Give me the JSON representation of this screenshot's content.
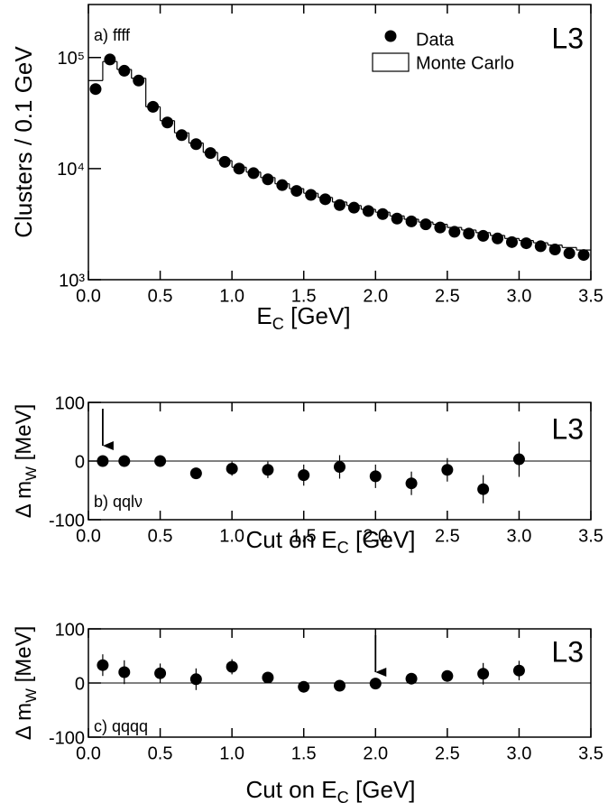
{
  "chart_data": [
    {
      "type": "scatter",
      "log_y": true,
      "annotation": "a) ffff",
      "logo": "L3",
      "legend": true,
      "xlabel": [
        "E",
        "C",
        " [GeV]"
      ],
      "ylabel": "Clusters / 0.1 GeV",
      "xlim": [
        0,
        3.5
      ],
      "ylim": [
        1000,
        300000
      ],
      "xticks": [
        {
          "value": 0,
          "label": "0.0"
        },
        0.5,
        {
          "value": 1,
          "label": "1.0"
        },
        1.5,
        {
          "value": 2,
          "label": "2.0"
        },
        2.5,
        {
          "value": 3,
          "label": "3.0"
        },
        3.5
      ],
      "yticks": [
        {
          "value": 1000,
          "label": "10³"
        },
        {
          "value": 10000,
          "label": "10⁴"
        },
        {
          "value": 100000,
          "label": "10⁵"
        }
      ],
      "series": [
        {
          "name": "Data",
          "color": "#000000",
          "x": [
            0.05,
            0.15,
            0.25,
            0.35,
            0.45,
            0.55,
            0.65,
            0.75,
            0.85,
            0.95,
            1.05,
            1.15,
            1.25,
            1.35,
            1.45,
            1.55,
            1.65,
            1.75,
            1.85,
            1.95,
            2.05,
            2.15,
            2.25,
            2.35,
            2.45,
            2.55,
            2.65,
            2.75,
            2.85,
            2.95,
            3.05,
            3.15,
            3.25,
            3.35,
            3.45
          ],
          "values": [
            52000,
            96000,
            76000,
            62000,
            36000,
            26000,
            20000,
            16600,
            13800,
            11500,
            10000,
            9100,
            8000,
            7100,
            6300,
            5800,
            5300,
            4700,
            4450,
            4150,
            3900,
            3550,
            3350,
            3150,
            2950,
            2700,
            2600,
            2480,
            2350,
            2180,
            2130,
            2000,
            1870,
            1730,
            1670
          ]
        },
        {
          "name": "Monte Carlo",
          "color": "#000000",
          "bins": [
            0,
            0.1,
            0.2,
            0.3,
            0.4,
            0.5,
            0.6,
            0.7,
            0.8,
            0.9,
            1.0,
            1.1,
            1.2,
            1.3,
            1.4,
            1.5,
            1.6,
            1.7,
            1.8,
            1.9,
            2.0,
            2.1,
            2.2,
            2.3,
            2.4,
            2.5,
            2.6,
            2.7,
            2.8,
            2.9,
            3.0,
            3.1,
            3.2,
            3.3,
            3.4,
            3.5
          ],
          "values": [
            62000,
            92000,
            78000,
            65000,
            36000,
            27000,
            21000,
            17000,
            14000,
            11800,
            10300,
            9300,
            8300,
            7300,
            6600,
            6000,
            5500,
            5000,
            4650,
            4300,
            4050,
            3750,
            3500,
            3300,
            3150,
            2950,
            2800,
            2650,
            2500,
            2350,
            2250,
            2150,
            2050,
            1950,
            1850
          ]
        }
      ]
    },
    {
      "type": "errorbar",
      "annotation": "b) qqlν",
      "logo": "L3",
      "hline": 0,
      "arrow_x": 0.1,
      "xlabel": [
        "Cut on E",
        "C",
        " [GeV]"
      ],
      "ylabel": [
        "Δ m",
        "W",
        " [MeV]"
      ],
      "xlim": [
        0,
        3.5
      ],
      "ylim": [
        -100,
        100
      ],
      "xticks": [
        {
          "value": 0,
          "label": "0.0"
        },
        0.5,
        {
          "value": 1,
          "label": "1.0"
        },
        1.5,
        {
          "value": 2,
          "label": "2.0"
        },
        2.5,
        {
          "value": 3,
          "label": "3.0"
        },
        3.5
      ],
      "yticks": [
        -100,
        0,
        100
      ],
      "series": [
        {
          "color": "#000000",
          "x": [
            0.1,
            0.25,
            0.5,
            0.75,
            1.0,
            1.25,
            1.5,
            1.75,
            2.0,
            2.25,
            2.5,
            2.75,
            3.0
          ],
          "values": [
            0,
            0,
            0,
            -21,
            -13,
            -15,
            -24,
            -10,
            -26,
            -38,
            -15,
            -48,
            3
          ],
          "errors": [
            2,
            2,
            2,
            8,
            12,
            14,
            18,
            20,
            20,
            20,
            20,
            24,
            30
          ]
        }
      ]
    },
    {
      "type": "errorbar",
      "annotation": "c) qqqq",
      "logo": "L3",
      "hline": 0,
      "arrow_x": 2.0,
      "xlabel": [
        "Cut on E",
        "C",
        " [GeV]"
      ],
      "ylabel": [
        "Δ m",
        "W",
        " [MeV]"
      ],
      "xlim": [
        0,
        3.5
      ],
      "ylim": [
        -100,
        100
      ],
      "xticks": [
        {
          "value": 0,
          "label": "0.0"
        },
        0.5,
        {
          "value": 1,
          "label": "1.0"
        },
        1.5,
        {
          "value": 2,
          "label": "2.0"
        },
        2.5,
        {
          "value": 3,
          "label": "3.0"
        },
        3.5
      ],
      "yticks": [
        -100,
        0,
        100
      ],
      "series": [
        {
          "color": "#000000",
          "x": [
            0.1,
            0.25,
            0.5,
            0.75,
            1.0,
            1.25,
            1.5,
            1.75,
            2.0,
            2.25,
            2.5,
            2.75,
            3.0
          ],
          "values": [
            33,
            20,
            18,
            7,
            30,
            10,
            -7,
            -5,
            -1,
            8,
            13,
            17,
            23
          ],
          "errors": [
            20,
            22,
            18,
            20,
            14,
            10,
            8,
            4,
            3,
            3,
            4,
            20,
            18
          ]
        }
      ]
    }
  ]
}
